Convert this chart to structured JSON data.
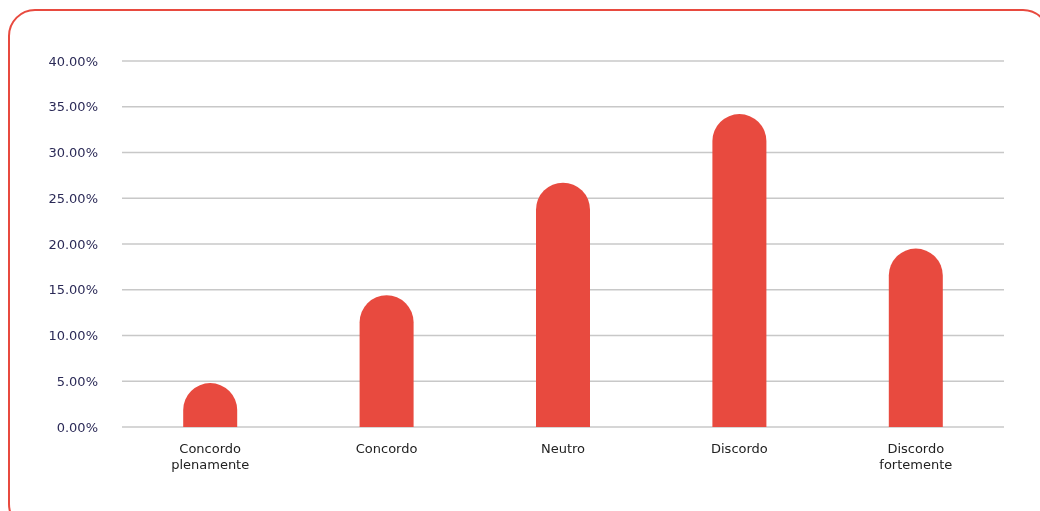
{
  "chart_data": {
    "type": "bar",
    "categories": [
      "Concordo plenamente",
      "Concordo",
      "Neutro",
      "Discordo",
      "Discordo fortemente"
    ],
    "values": [
      4.8,
      14.4,
      26.7,
      34.2,
      19.5
    ],
    "color": "#e84a3f",
    "ylim": [
      0,
      40
    ],
    "yticks": [
      {
        "value": 0,
        "label": "0.00%"
      },
      {
        "value": 5,
        "label": "5.00%"
      },
      {
        "value": 10,
        "label": "10.00%"
      },
      {
        "value": 15,
        "label": "15.00%"
      },
      {
        "value": 20,
        "label": "20.00%"
      },
      {
        "value": 25,
        "label": "25.00%"
      },
      {
        "value": 30,
        "label": "30.00%"
      },
      {
        "value": 35,
        "label": "35.00%"
      },
      {
        "value": 40,
        "label": "40.00%"
      }
    ],
    "grid": "y"
  }
}
